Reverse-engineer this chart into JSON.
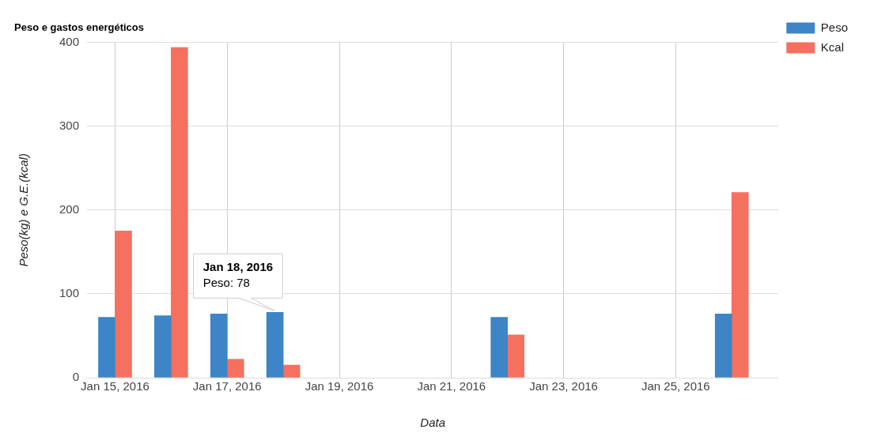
{
  "chart_data": {
    "type": "bar",
    "title": "Peso e gastos energéticos",
    "xlabel": "Data",
    "ylabel": "Peso(kg) e G.E.(kcal)",
    "x": [
      "2016-01-15",
      "2016-01-16",
      "2016-01-17",
      "2016-01-18",
      "2016-01-22",
      "2016-01-26"
    ],
    "series": [
      {
        "name": "Peso",
        "color": "#3d85c6",
        "values": [
          72,
          74,
          76,
          78,
          72,
          76
        ]
      },
      {
        "name": "Kcal",
        "color": "#f6705f",
        "values": [
          175,
          394,
          22,
          15,
          51,
          221
        ]
      }
    ],
    "xlim": [
      "2016-01-14T12:00",
      "2016-01-26T20:00"
    ],
    "xticks": [
      {
        "value": "2016-01-15",
        "label": "Jan 15, 2016"
      },
      {
        "value": "2016-01-17",
        "label": "Jan 17, 2016"
      },
      {
        "value": "2016-01-19",
        "label": "Jan 19, 2016"
      },
      {
        "value": "2016-01-21",
        "label": "Jan 21, 2016"
      },
      {
        "value": "2016-01-23",
        "label": "Jan 23, 2016"
      },
      {
        "value": "2016-01-25",
        "label": "Jan 25, 2016"
      }
    ],
    "ylim": [
      0,
      400
    ],
    "yticks": [
      0,
      100,
      200,
      300,
      400
    ],
    "grid": true,
    "legend": "top right",
    "annotations": [
      {
        "text": "Jan 18, 2016\nPeso: 78",
        "x": "2016-01-18",
        "y": 78
      }
    ]
  }
}
